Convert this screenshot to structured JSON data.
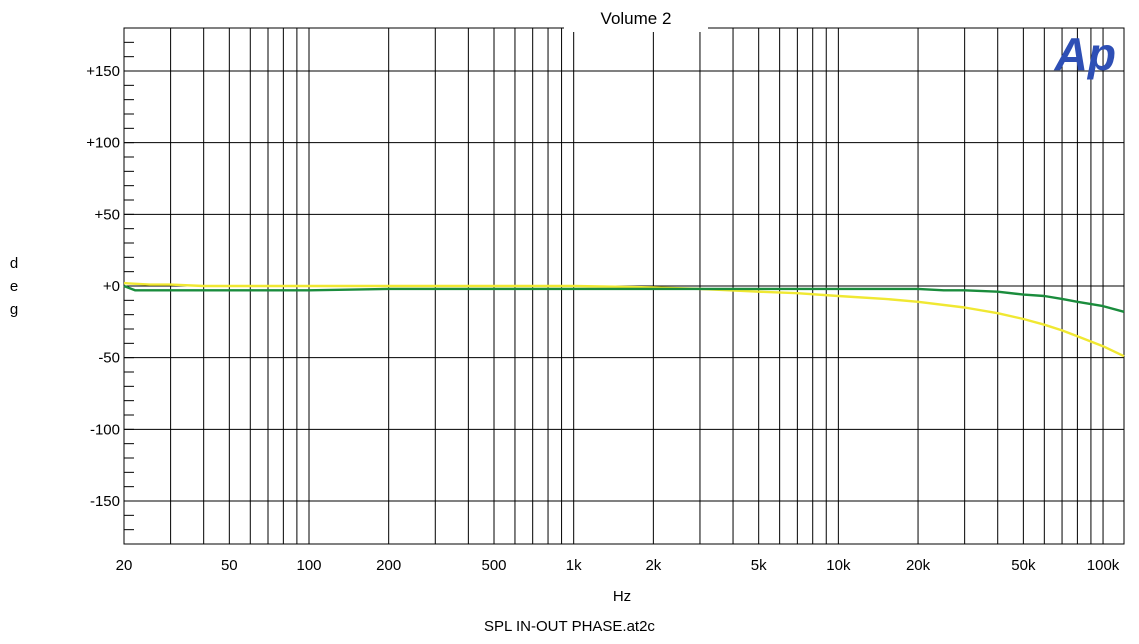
{
  "logo": {
    "text": "Ap",
    "color": "#2e4fb5"
  },
  "file_name": "SPL IN-OUT PHASE.at2c",
  "chart_data": {
    "type": "line",
    "title": "Volume 2",
    "xlabel": "Hz",
    "ylabel": "deg",
    "ylabel_letters": [
      "d",
      "e",
      "g"
    ],
    "x_scale": "log",
    "xlim": [
      20,
      120000
    ],
    "ylim": [
      -180,
      180
    ],
    "grid": true,
    "x_ticks": [
      {
        "value": 20,
        "label": "20"
      },
      {
        "value": 50,
        "label": "50"
      },
      {
        "value": 100,
        "label": "100"
      },
      {
        "value": 200,
        "label": "200"
      },
      {
        "value": 500,
        "label": "500"
      },
      {
        "value": 1000,
        "label": "1k"
      },
      {
        "value": 2000,
        "label": "2k"
      },
      {
        "value": 5000,
        "label": "5k"
      },
      {
        "value": 10000,
        "label": "10k"
      },
      {
        "value": 20000,
        "label": "20k"
      },
      {
        "value": 50000,
        "label": "50k"
      },
      {
        "value": 100000,
        "label": "100k"
      }
    ],
    "y_ticks": [
      {
        "value": 150,
        "label": "+150"
      },
      {
        "value": 100,
        "label": "+100"
      },
      {
        "value": 50,
        "label": "+50"
      },
      {
        "value": 0,
        "label": "+0"
      },
      {
        "value": -50,
        "label": "-50"
      },
      {
        "value": -100,
        "label": "-100"
      },
      {
        "value": -150,
        "label": "-150"
      }
    ],
    "series": [
      {
        "color": "#f0e832",
        "x": [
          20,
          25,
          30,
          40,
          50,
          70,
          100,
          200,
          500,
          1000,
          2000,
          3000,
          5000,
          7000,
          10000,
          15000,
          20000,
          30000,
          40000,
          50000,
          60000,
          70000,
          80000,
          100000,
          120000
        ],
        "y": [
          2,
          1,
          1,
          0,
          0,
          0,
          0,
          0,
          0,
          0,
          -1,
          -2,
          -4,
          -5,
          -7,
          -9,
          -11,
          -15,
          -19,
          -23,
          -27,
          -31,
          -35,
          -42,
          -49
        ]
      },
      {
        "color": "#1a8c3c",
        "x": [
          20,
          22,
          25,
          30,
          50,
          100,
          200,
          500,
          1000,
          2000,
          5000,
          10000,
          15000,
          20000,
          25000,
          30000,
          40000,
          50000,
          60000,
          70000,
          80000,
          100000,
          120000
        ],
        "y": [
          0,
          -3,
          -3,
          -3,
          -3,
          -3,
          -2,
          -2,
          -2,
          -2,
          -2,
          -2,
          -2,
          -2,
          -3,
          -3,
          -4,
          -6,
          -7,
          -9,
          -11,
          -14,
          -18
        ]
      }
    ]
  }
}
